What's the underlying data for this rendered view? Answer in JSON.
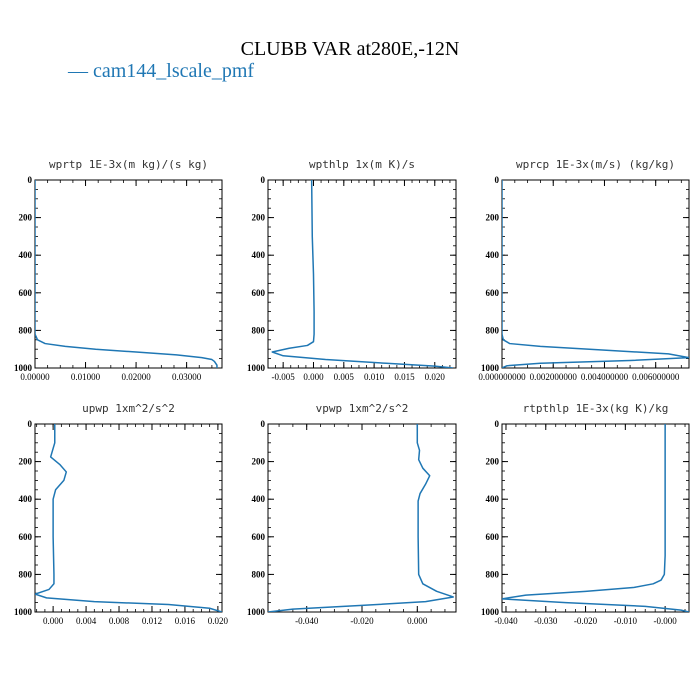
{
  "title": "CLUBB VAR at280E,-12N",
  "legend": [
    {
      "label": "cam144_lscale_pmf",
      "color": "#1f77b4"
    }
  ],
  "chart_data": [
    {
      "type": "line",
      "title": "wprtp  1E-3x(m kg)/(s kg)",
      "xlim": [
        0.0,
        0.037
      ],
      "ylim": [
        1000,
        0
      ],
      "xticks": [
        0,
        0.01,
        0.02,
        0.03
      ],
      "xtick_labels": [
        "0.00000",
        "0.01000",
        "0.02000",
        "0.03000"
      ],
      "yticks": [
        0,
        200,
        400,
        600,
        800,
        1000
      ],
      "ytick_labels": [
        "0",
        "200",
        "400",
        "600",
        "800",
        "1000"
      ],
      "series": [
        {
          "color": "#1f77b4",
          "x": [
            0.0,
            0.0,
            0.0,
            0.0005,
            0.002,
            0.006,
            0.012,
            0.02,
            0.028,
            0.033,
            0.035,
            0.0355,
            0.036,
            0.036
          ],
          "y": [
            0,
            500,
            820,
            850,
            870,
            885,
            900,
            915,
            930,
            945,
            955,
            965,
            985,
            1000
          ]
        }
      ]
    },
    {
      "type": "line",
      "title": "wpthlp  1x(m K)/s",
      "xlim": [
        -0.0075,
        0.0235
      ],
      "ylim": [
        1000,
        0
      ],
      "xticks": [
        -0.005,
        0.0,
        0.005,
        0.01,
        0.015,
        0.02
      ],
      "xtick_labels": [
        "-0.005",
        "0.000",
        "0.005",
        "0.010",
        "0.015",
        "0.020"
      ],
      "yticks": [
        0,
        200,
        400,
        600,
        800,
        1000
      ],
      "ytick_labels": [
        "0",
        "200",
        "400",
        "600",
        "800",
        "1000"
      ],
      "series": [
        {
          "color": "#1f77b4",
          "x": [
            -0.0003,
            -0.0002,
            0.0,
            0.0001,
            0.0001,
            0.0,
            -0.001,
            -0.004,
            -0.0068,
            -0.005,
            0.002,
            0.012,
            0.02,
            0.023
          ],
          "y": [
            0,
            300,
            500,
            700,
            820,
            860,
            880,
            895,
            915,
            935,
            955,
            975,
            990,
            1000
          ]
        }
      ]
    },
    {
      "type": "line",
      "title": "wprcp  1E-3x(m/s) (kg/kg)",
      "xlim": [
        0.0,
        0.0073
      ],
      "ylim": [
        1000,
        0
      ],
      "xticks": [
        0.0,
        0.002,
        0.004,
        0.006
      ],
      "xtick_labels": [
        "0.000000000",
        "0.002000000",
        "0.004000000",
        "0.006000000"
      ],
      "yticks": [
        0,
        200,
        400,
        600,
        800,
        1000
      ],
      "ytick_labels": [
        "0",
        "200",
        "400",
        "600",
        "800",
        "1000"
      ],
      "series": [
        {
          "color": "#1f77b4",
          "x": [
            0.0,
            0.0,
            0.0,
            5e-05,
            0.0003,
            0.0015,
            0.004,
            0.0065,
            0.0073,
            0.005,
            0.0015,
            0.0002,
            0.0
          ],
          "y": [
            0,
            500,
            820,
            850,
            870,
            885,
            905,
            925,
            945,
            960,
            975,
            988,
            1000
          ]
        }
      ]
    },
    {
      "type": "line",
      "title": "upwp  1xm^2/s^2",
      "xlim": [
        -0.0022,
        0.0205
      ],
      "ylim": [
        1000,
        0
      ],
      "xticks": [
        0.0,
        0.004,
        0.008,
        0.012,
        0.016,
        0.02
      ],
      "xtick_labels": [
        "0.000",
        "0.004",
        "0.008",
        "0.012",
        "0.016",
        "0.020"
      ],
      "yticks": [
        0,
        200,
        400,
        600,
        800,
        1000
      ],
      "ytick_labels": [
        "0",
        "200",
        "400",
        "600",
        "800",
        "1000"
      ],
      "series": [
        {
          "color": "#1f77b4",
          "x": [
            0.0002,
            0.0002,
            0.0,
            -0.0003,
            0.0008,
            0.0016,
            0.0013,
            0.0003,
            0.0,
            0.0,
            0.0001,
            0.0001,
            -0.0005,
            -0.0022,
            -0.0008,
            0.005,
            0.014,
            0.019,
            0.0205
          ],
          "y": [
            0,
            100,
            130,
            175,
            215,
            255,
            300,
            350,
            400,
            600,
            800,
            850,
            880,
            905,
            925,
            945,
            960,
            980,
            1000
          ]
        }
      ]
    },
    {
      "type": "line",
      "title": "vpwp  1xm^2/s^2",
      "xlim": [
        -0.054,
        0.014
      ],
      "ylim": [
        1000,
        0
      ],
      "xticks": [
        -0.04,
        -0.02,
        0.0
      ],
      "xtick_labels": [
        "-0.040",
        "-0.020",
        "0.000"
      ],
      "yticks": [
        0,
        200,
        400,
        600,
        800,
        1000
      ],
      "ytick_labels": [
        "0",
        "200",
        "400",
        "600",
        "800",
        "1000"
      ],
      "series": [
        {
          "color": "#1f77b4",
          "x": [
            0.0,
            0.0,
            0.0008,
            0.0005,
            0.002,
            0.0045,
            0.003,
            0.001,
            0.0003,
            0.0003,
            0.0005,
            0.002,
            0.007,
            0.013,
            0.003,
            -0.02,
            -0.045,
            -0.054
          ],
          "y": [
            0,
            100,
            140,
            190,
            235,
            275,
            320,
            370,
            410,
            600,
            800,
            850,
            890,
            920,
            945,
            965,
            985,
            1000
          ]
        }
      ]
    },
    {
      "type": "line",
      "title": "rtpthlp  1E-3x(kg K)/kg",
      "xlim": [
        -0.041,
        0.006
      ],
      "ylim": [
        1000,
        0
      ],
      "xticks": [
        -0.04,
        -0.03,
        -0.02,
        -0.01,
        0.0
      ],
      "xtick_labels": [
        "-0.040",
        "-0.030",
        "-0.020",
        "-0.010",
        "-0.000"
      ],
      "yticks": [
        0,
        200,
        400,
        600,
        800,
        1000
      ],
      "ytick_labels": [
        "0",
        "200",
        "400",
        "600",
        "800",
        "1000"
      ],
      "series": [
        {
          "color": "#1f77b4",
          "x": [
            0.0,
            0.0,
            0.0,
            -0.0002,
            -0.001,
            -0.003,
            -0.008,
            -0.02,
            -0.035,
            -0.041,
            -0.025,
            -0.005,
            0.004,
            0.006
          ],
          "y": [
            0,
            400,
            700,
            800,
            830,
            850,
            870,
            890,
            910,
            930,
            950,
            970,
            990,
            1000
          ]
        }
      ]
    }
  ]
}
